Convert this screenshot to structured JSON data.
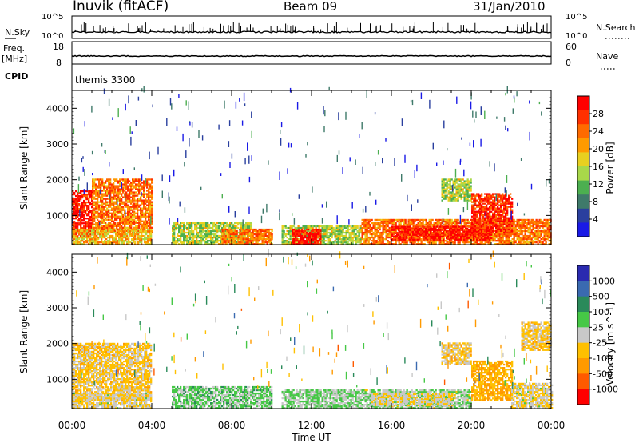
{
  "header": {
    "station": "Inuvik (fitACF)",
    "beam": "Beam 09",
    "date": "31/Jan/2010"
  },
  "strips": {
    "nsky_label": "N.Sky",
    "nsky_ticks": [
      "10^5",
      "10^0"
    ],
    "nsearch_label": "N.Search",
    "nsearch_ticks": [
      "10^5",
      "10^0"
    ],
    "freq_label": "Freq.",
    "freq_unit": "[MHz]",
    "freq_ticks": [
      "18",
      "8"
    ],
    "nave_label": "Nave",
    "nave_ticks": [
      "60",
      "0"
    ],
    "cpid_label": "CPID",
    "cpid_value": "themis 3300"
  },
  "colors": {
    "power_scale": [
      "#1a1ae6",
      "#2a3f9e",
      "#3f7a6a",
      "#4caf50",
      "#a8d84a",
      "#e8d020",
      "#ff9a00",
      "#ff6a00",
      "#ff3000",
      "#ff0000"
    ],
    "velocity_scale": [
      "#ff0000",
      "#ff5a00",
      "#ff9a00",
      "#ffc000",
      "#c8c8c8",
      "#46c846",
      "#2a8a5a",
      "#3a6ab0",
      "#2a2ab0"
    ]
  },
  "chart_data": [
    {
      "type": "heatmap",
      "title": "",
      "xlabel": "",
      "ylabel": "Slant Range [km]",
      "x_ticks": [
        "00:00",
        "04:00",
        "08:00",
        "12:00",
        "16:00",
        "20:00",
        "00:00"
      ],
      "x_range_hours": [
        0,
        24
      ],
      "y_range_km": [
        180,
        4500
      ],
      "y_ticks": [
        1000,
        2000,
        3000,
        4000
      ],
      "grid": false,
      "colorbar": {
        "label": "Power [dB]",
        "ticks": [
          "28",
          "24",
          "20",
          "16",
          "12",
          "8",
          "4"
        ],
        "range": [
          0,
          30
        ]
      },
      "echo_regions": [
        {
          "t0": 0.0,
          "t1": 1.0,
          "r0": 400,
          "r1": 1700,
          "value": 28
        },
        {
          "t0": 1.0,
          "t1": 4.0,
          "r0": 500,
          "r1": 2000,
          "value": 22
        },
        {
          "t0": 0.0,
          "t1": 4.0,
          "r0": 180,
          "r1": 600,
          "value": 18
        },
        {
          "t0": 5.0,
          "t1": 9.0,
          "r0": 180,
          "r1": 800,
          "value": 14
        },
        {
          "t0": 7.5,
          "t1": 10.0,
          "r0": 180,
          "r1": 600,
          "value": 22
        },
        {
          "t0": 10.5,
          "t1": 12.5,
          "r0": 180,
          "r1": 700,
          "value": 14
        },
        {
          "t0": 11.0,
          "t1": 12.5,
          "r0": 180,
          "r1": 600,
          "value": 28
        },
        {
          "t0": 12.5,
          "t1": 14.5,
          "r0": 180,
          "r1": 700,
          "value": 14
        },
        {
          "t0": 14.5,
          "t1": 24.0,
          "r0": 180,
          "r1": 900,
          "value": 22
        },
        {
          "t0": 16.0,
          "t1": 21.0,
          "r0": 300,
          "r1": 700,
          "value": 28
        },
        {
          "t0": 18.5,
          "t1": 20.0,
          "r0": 1400,
          "r1": 2000,
          "value": 14
        },
        {
          "t0": 20.0,
          "t1": 22.0,
          "r0": 500,
          "r1": 1600,
          "value": 26
        }
      ]
    },
    {
      "type": "heatmap",
      "title": "",
      "xlabel": "Time UT",
      "ylabel": "Slant Range [km]",
      "x_ticks": [
        "00:00",
        "04:00",
        "08:00",
        "12:00",
        "16:00",
        "20:00",
        "00:00"
      ],
      "x_range_hours": [
        0,
        24
      ],
      "y_range_km": [
        180,
        4500
      ],
      "y_ticks": [
        1000,
        2000,
        3000,
        4000
      ],
      "grid": false,
      "colorbar": {
        "label": "Velocity [m s^-1]",
        "ticks": [
          "1000",
          "500",
          "100",
          "25",
          "-25",
          "-100",
          "-500",
          "-1000"
        ],
        "range": [
          -1200,
          1200
        ]
      },
      "echo_regions": [
        {
          "t0": 0.0,
          "t1": 4.0,
          "r0": 400,
          "r1": 2000,
          "value": -200
        },
        {
          "t0": 0.0,
          "t1": 4.0,
          "r0": 180,
          "r1": 600,
          "value": -100
        },
        {
          "t0": 5.0,
          "t1": 10.0,
          "r0": 180,
          "r1": 800,
          "value": 200
        },
        {
          "t0": 10.5,
          "t1": 14.5,
          "r0": 180,
          "r1": 700,
          "value": 150
        },
        {
          "t0": 14.5,
          "t1": 20.0,
          "r0": 180,
          "r1": 700,
          "value": 100
        },
        {
          "t0": 15.0,
          "t1": 19.0,
          "r0": 250,
          "r1": 600,
          "value": -100
        },
        {
          "t0": 18.5,
          "t1": 20.0,
          "r0": 1400,
          "r1": 2000,
          "value": -200
        },
        {
          "t0": 20.0,
          "t1": 22.0,
          "r0": 400,
          "r1": 1500,
          "value": -400
        },
        {
          "t0": 22.0,
          "t1": 24.0,
          "r0": 180,
          "r1": 900,
          "value": -100
        },
        {
          "t0": 22.5,
          "t1": 24.0,
          "r0": 1800,
          "r1": 2600,
          "value": -200
        }
      ]
    }
  ]
}
